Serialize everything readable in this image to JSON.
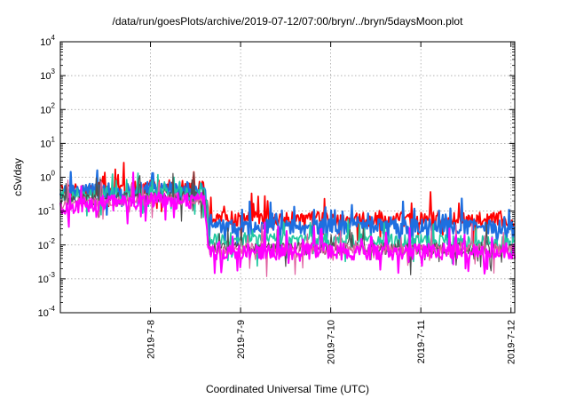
{
  "chart_data": {
    "type": "line",
    "title": "/data/run/goesPlots/archive/2019-07-12/07:00/bryn/../bryn/5daysMoon.plot",
    "xlabel": "Coordinated Universal Time (UTC)",
    "ylabel": "cSv/day",
    "x_start": "2019-07-07 06:00",
    "x_end": "2019-07-12 07:00",
    "xlim": [
      0.0,
      5.042
    ],
    "x_ticks": [
      {
        "label": "2019-7-8",
        "day": 1
      },
      {
        "label": "2019-7-9",
        "day": 2
      },
      {
        "label": "2019-7-10",
        "day": 3
      },
      {
        "label": "2019-7-11",
        "day": 4
      },
      {
        "label": "2019-7-12",
        "day": 5
      }
    ],
    "y_scale": "log",
    "ylim": [
      0.0001,
      10000
    ],
    "y_ticks": [
      {
        "base": "10",
        "exp": "-4"
      },
      {
        "base": "10",
        "exp": "-3"
      },
      {
        "base": "10",
        "exp": "-2"
      },
      {
        "base": "10",
        "exp": "-1"
      },
      {
        "base": "10",
        "exp": "0"
      },
      {
        "base": "10",
        "exp": "1"
      },
      {
        "base": "10",
        "exp": "2"
      },
      {
        "base": "10",
        "exp": "3"
      },
      {
        "base": "10",
        "exp": "4"
      }
    ],
    "grid": true,
    "series": [
      {
        "color": "#ff0000",
        "width": 1.8,
        "profile": [
          [
            0.0,
            0.4
          ],
          [
            1.0,
            0.5
          ],
          [
            1.6,
            0.5
          ],
          [
            1.65,
            0.06
          ],
          [
            5.04,
            0.055
          ]
        ],
        "noise": 0.22,
        "spikes": 0.08
      },
      {
        "color": "#1e6fe0",
        "width": 2.2,
        "profile": [
          [
            0.0,
            0.36
          ],
          [
            1.0,
            0.45
          ],
          [
            1.6,
            0.45
          ],
          [
            1.65,
            0.035
          ],
          [
            5.04,
            0.035
          ]
        ],
        "noise": 0.22,
        "spikes": 0.15
      },
      {
        "color": "#20c8a0",
        "width": 1.6,
        "profile": [
          [
            0.0,
            0.28
          ],
          [
            1.0,
            0.33
          ],
          [
            1.6,
            0.33
          ],
          [
            1.65,
            0.015
          ],
          [
            5.04,
            0.012
          ]
        ],
        "noise": 0.2,
        "spikes": 0.1
      },
      {
        "color": "#505050",
        "width": 1.2,
        "profile": [
          [
            0.0,
            0.2
          ],
          [
            1.0,
            0.26
          ],
          [
            1.6,
            0.26
          ],
          [
            1.65,
            0.008
          ],
          [
            5.04,
            0.008
          ]
        ],
        "noise": 0.18,
        "spikes": 0.1
      },
      {
        "color": "#e060a0",
        "width": 1.2,
        "profile": [
          [
            0.0,
            0.17
          ],
          [
            1.0,
            0.22
          ],
          [
            1.6,
            0.22
          ],
          [
            1.65,
            0.0075
          ],
          [
            5.04,
            0.0075
          ]
        ],
        "noise": 0.18,
        "spikes": 0.1
      },
      {
        "color": "#ff00ff",
        "width": 2.0,
        "profile": [
          [
            0.0,
            0.14
          ],
          [
            1.0,
            0.2
          ],
          [
            1.6,
            0.2
          ],
          [
            1.65,
            0.0065
          ],
          [
            5.04,
            0.0065
          ]
        ],
        "noise": 0.25,
        "spikes": 0.12,
        "dip": {
          "day": 3.75,
          "value": 0.0015
        }
      }
    ]
  }
}
